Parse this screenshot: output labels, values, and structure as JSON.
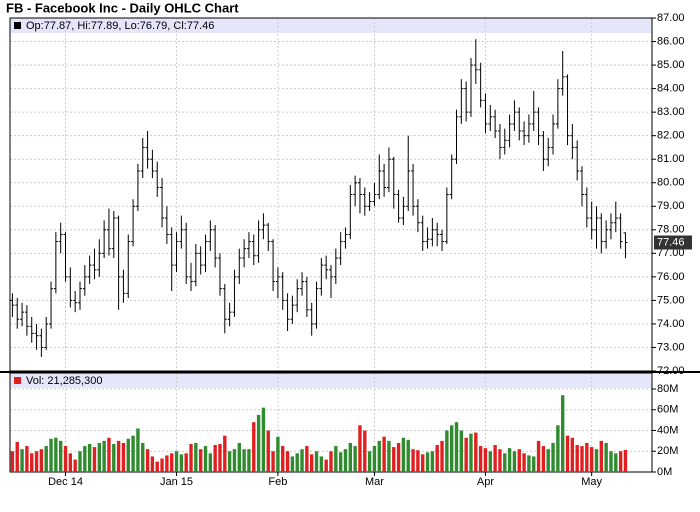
{
  "chart_data": {
    "type": "ohlc",
    "title": "FB - Facebook Inc - Daily OHLC Chart",
    "legend": "Op:77.87, Hi:77.89, Lo:76.79, Cl:77.46",
    "color": "#000000",
    "open": [
      75.0,
      74.8,
      74.2,
      74.5,
      73.9,
      73.6,
      73.5,
      73.0,
      74.0,
      75.5,
      77.5,
      77.8,
      76.0,
      75.0,
      74.9,
      75.5,
      76.0,
      76.5,
      76.3,
      77.0,
      78.0,
      77.2,
      78.5,
      76.0,
      75.3,
      77.5,
      79.0,
      80.5,
      81.5,
      81.0,
      80.5,
      79.8,
      78.5,
      77.8,
      76.5,
      77.5,
      78.0,
      76.0,
      75.8,
      77.0,
      76.5,
      77.5,
      78.0,
      76.8,
      75.5,
      74.2,
      74.5,
      76.0,
      76.8,
      77.2,
      77.5,
      76.9,
      78.0,
      78.2,
      77.5,
      75.8,
      76.0,
      75.0,
      74.2,
      74.8,
      75.5,
      75.8,
      74.6,
      74.0,
      75.5,
      76.5,
      76.3,
      76.0,
      76.8,
      77.5,
      77.8,
      79.5,
      80.0,
      79.5,
      79.0,
      79.2,
      79.5,
      80.5,
      79.8,
      81.0,
      79.5,
      78.5,
      79.0,
      80.5,
      79.0,
      78.3,
      77.5,
      77.6,
      78.0,
      77.8,
      77.5,
      79.5,
      81.0,
      82.8,
      84.0,
      83.0,
      85.0,
      84.8,
      83.5,
      82.5,
      82.8,
      82.2,
      81.5,
      81.8,
      82.5,
      83.0,
      82.2,
      82.0,
      82.5,
      83.0,
      82.0,
      81.0,
      81.5,
      82.5,
      84.0,
      84.5,
      82.0,
      81.5,
      80.5,
      79.5,
      78.5,
      78.0,
      78.5,
      77.5,
      78.0,
      78.3,
      78.5,
      77.87
    ],
    "high": [
      75.3,
      75.1,
      74.9,
      74.8,
      74.3,
      74.0,
      73.8,
      74.3,
      75.8,
      77.9,
      78.3,
      77.9,
      76.4,
      75.4,
      75.8,
      76.5,
      76.9,
      77.2,
      77.6,
      78.4,
      78.9,
      78.8,
      78.6,
      76.3,
      77.8,
      79.3,
      80.8,
      81.9,
      82.2,
      81.4,
      80.9,
      80.2,
      79.0,
      78.1,
      77.9,
      78.6,
      78.3,
      76.6,
      77.4,
      77.3,
      77.8,
      78.4,
      78.2,
      77.0,
      75.7,
      74.9,
      76.3,
      77.2,
      77.6,
      77.9,
      77.8,
      78.4,
      78.7,
      78.3,
      77.6,
      76.4,
      76.2,
      75.3,
      75.2,
      75.9,
      76.2,
      76.0,
      74.9,
      75.8,
      76.8,
      76.9,
      76.5,
      77.2,
      77.9,
      78.1,
      79.9,
      80.3,
      80.2,
      79.8,
      79.6,
      80.0,
      81.2,
      80.8,
      81.5,
      81.1,
      79.7,
      79.4,
      82.0,
      80.8,
      79.3,
      78.6,
      78.1,
      78.5,
      78.3,
      78.0,
      79.8,
      81.2,
      83.1,
      84.4,
      84.3,
      85.3,
      86.1,
      85.1,
      83.8,
      83.3,
      83.1,
      82.5,
      82.3,
      82.9,
      83.5,
      83.2,
      82.6,
      82.9,
      83.9,
      83.2,
      82.2,
      81.9,
      82.9,
      84.4,
      85.6,
      84.6,
      82.5,
      81.8,
      80.7,
      79.8,
      79.2,
      79.0,
      78.7,
      78.4,
      78.7,
      79.2,
      78.7,
      77.89
    ],
    "low": [
      74.3,
      73.8,
      73.9,
      73.5,
      73.2,
      72.9,
      72.6,
      72.9,
      73.8,
      75.3,
      77.0,
      75.8,
      74.7,
      74.5,
      74.6,
      75.2,
      75.7,
      75.9,
      76.0,
      76.8,
      76.9,
      76.8,
      74.6,
      74.9,
      75.1,
      77.3,
      78.8,
      80.2,
      80.6,
      80.2,
      79.4,
      78.1,
      77.4,
      75.4,
      76.2,
      77.2,
      75.7,
      75.4,
      75.6,
      76.1,
      76.2,
      77.1,
      76.4,
      75.2,
      73.6,
      73.9,
      74.3,
      75.7,
      76.4,
      76.8,
      76.5,
      76.6,
      77.6,
      77.1,
      75.4,
      75.1,
      74.6,
      73.7,
      74.0,
      74.5,
      75.2,
      74.3,
      73.5,
      73.8,
      75.2,
      75.9,
      75.1,
      75.7,
      76.5,
      77.2,
      77.6,
      79.0,
      78.7,
      78.6,
      78.8,
      79.0,
      79.3,
      79.4,
      79.6,
      78.9,
      78.3,
      78.2,
      78.8,
      78.6,
      77.9,
      77.1,
      77.2,
      77.3,
      77.3,
      77.1,
      77.4,
      79.3,
      80.8,
      82.5,
      82.6,
      82.8,
      84.2,
      83.2,
      82.1,
      82.2,
      81.9,
      81.0,
      81.2,
      81.5,
      82.2,
      81.8,
      81.6,
      81.7,
      82.2,
      81.6,
      80.5,
      80.7,
      81.2,
      82.3,
      83.7,
      81.6,
      81.0,
      80.1,
      79.0,
      78.1,
      77.6,
      77.2,
      77.0,
      77.2,
      77.6,
      77.9,
      77.2,
      76.79
    ],
    "close": [
      74.8,
      74.2,
      74.5,
      73.9,
      73.6,
      73.5,
      73.0,
      74.0,
      75.5,
      77.5,
      77.8,
      76.0,
      75.0,
      74.9,
      75.5,
      76.0,
      76.5,
      76.3,
      77.0,
      78.0,
      77.2,
      78.5,
      76.0,
      75.3,
      77.5,
      79.0,
      80.5,
      81.5,
      81.0,
      80.5,
      79.8,
      78.5,
      77.8,
      76.5,
      77.5,
      78.0,
      76.0,
      75.8,
      77.0,
      76.5,
      77.5,
      78.0,
      76.8,
      75.5,
      74.2,
      74.5,
      76.0,
      76.8,
      77.2,
      77.5,
      76.9,
      78.0,
      78.2,
      77.5,
      75.8,
      76.0,
      75.0,
      74.2,
      74.8,
      75.5,
      75.8,
      74.6,
      74.0,
      75.5,
      76.5,
      76.3,
      76.0,
      76.8,
      77.5,
      77.8,
      79.5,
      80.0,
      79.5,
      79.0,
      79.2,
      79.5,
      80.5,
      79.8,
      81.0,
      79.5,
      78.5,
      79.0,
      80.5,
      79.0,
      78.3,
      77.5,
      77.6,
      78.0,
      77.8,
      77.5,
      79.5,
      81.0,
      82.8,
      84.0,
      83.0,
      85.0,
      84.8,
      83.5,
      82.5,
      82.8,
      82.2,
      81.5,
      81.8,
      82.5,
      83.0,
      82.2,
      82.0,
      82.5,
      83.0,
      82.0,
      81.0,
      81.5,
      82.5,
      84.0,
      84.5,
      82.0,
      81.5,
      80.5,
      79.5,
      78.5,
      78.0,
      78.5,
      77.5,
      78.0,
      78.3,
      78.5,
      77.5,
      77.46
    ],
    "xlim": [
      -0.5,
      132.5
    ],
    "xticks": [
      {
        "value": 11,
        "label": "Dec 14"
      },
      {
        "value": 34,
        "label": "Jan 15"
      },
      {
        "value": 55,
        "label": "Feb"
      },
      {
        "value": 75,
        "label": "Mar"
      },
      {
        "value": 98,
        "label": "Apr"
      },
      {
        "value": 120,
        "label": "May"
      }
    ],
    "ylim": [
      72,
      87
    ],
    "yticks": [
      {
        "value": 72,
        "label": "72.00"
      },
      {
        "value": 73,
        "label": "73.00"
      },
      {
        "value": 74,
        "label": "74.00"
      },
      {
        "value": 75,
        "label": "75.00"
      },
      {
        "value": 76,
        "label": "76.00"
      },
      {
        "value": 77,
        "label": "77.00"
      },
      {
        "value": 78,
        "label": "78.00"
      },
      {
        "value": 79,
        "label": "79.00"
      },
      {
        "value": 80,
        "label": "80.00"
      },
      {
        "value": 81,
        "label": "81.00"
      },
      {
        "value": 82,
        "label": "82.00"
      },
      {
        "value": 83,
        "label": "83.00"
      },
      {
        "value": 84,
        "label": "84.00"
      },
      {
        "value": 85,
        "label": "85.00"
      },
      {
        "value": 86,
        "label": "86.00"
      },
      {
        "value": 87,
        "label": "87.00"
      }
    ],
    "grid": true,
    "volume": {
      "legend": "Vol: 21,285,300",
      "up_color": "#2e8b2e",
      "down_color": "#e02020",
      "values": [
        20000000.0,
        29000000.0,
        22000000.0,
        25000000.0,
        18000000.0,
        20000000.0,
        22000000.0,
        25000000.0,
        32000000.0,
        33000000.0,
        30000000.0,
        25000000.0,
        18000000.0,
        12000000.0,
        20000000.0,
        25000000.0,
        27000000.0,
        24000000.0,
        28000000.0,
        30000000.0,
        33000000.0,
        27000000.0,
        30000000.0,
        28000000.0,
        32000000.0,
        35000000.0,
        42000000.0,
        28000000.0,
        22000000.0,
        15000000.0,
        10000000.0,
        13000000.0,
        16000000.0,
        18000000.0,
        20000000.0,
        17000000.0,
        18000000.0,
        27000000.0,
        28000000.0,
        22000000.0,
        25000000.0,
        18000000.0,
        26000000.0,
        27000000.0,
        35000000.0,
        20000000.0,
        22000000.0,
        28000000.0,
        22000000.0,
        22000000.0,
        48000000.0,
        55000000.0,
        62000000.0,
        40000000.0,
        20000000.0,
        34000000.0,
        25000000.0,
        20000000.0,
        15000000.0,
        18000000.0,
        22000000.0,
        25000000.0,
        17000000.0,
        20000000.0,
        15000000.0,
        12000000.0,
        20000000.0,
        25000000.0,
        19000000.0,
        22000000.0,
        28000000.0,
        25000000.0,
        45000000.0,
        40000000.0,
        20000000.0,
        25000000.0,
        30000000.0,
        34000000.0,
        30000000.0,
        24000000.0,
        28000000.0,
        33000000.0,
        31000000.0,
        22000000.0,
        21000000.0,
        17000000.0,
        19000000.0,
        20000000.0,
        26000000.0,
        30000000.0,
        40000000.0,
        45000000.0,
        48000000.0,
        40000000.0,
        33000000.0,
        37000000.0,
        38000000.0,
        25000000.0,
        23000000.0,
        20000000.0,
        26000000.0,
        22000000.0,
        18000000.0,
        23000000.0,
        20000000.0,
        22000000.0,
        18000000.0,
        16000000.0,
        15000000.0,
        30000000.0,
        25000000.0,
        22000000.0,
        28000000.0,
        45000000.0,
        74000000.0,
        35000000.0,
        33000000.0,
        26000000.0,
        25000000.0,
        28000000.0,
        24000000.0,
        22000000.0,
        30000000.0,
        28000000.0,
        20000000.0,
        18000000.0,
        20000000.0,
        21285300
      ],
      "ylim": [
        0,
        80000000.0
      ],
      "yticks": [
        {
          "value": 0,
          "label": "0M"
        },
        {
          "value": 20000000.0,
          "label": "20M"
        },
        {
          "value": 40000000.0,
          "label": "40M"
        },
        {
          "value": 60000000.0,
          "label": "60M"
        },
        {
          "value": 80000000.0,
          "label": "80M"
        }
      ]
    }
  }
}
